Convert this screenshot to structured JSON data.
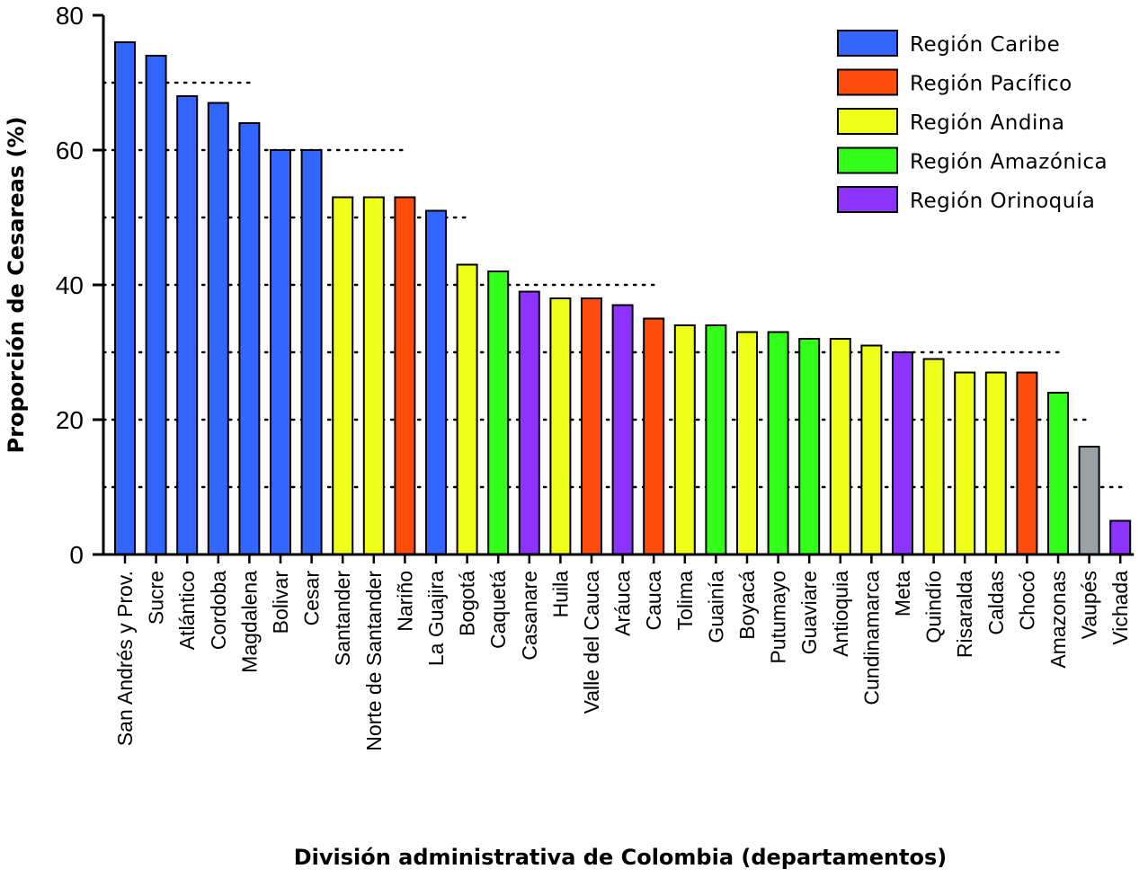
{
  "chart_data": {
    "type": "bar",
    "title": "",
    "xlabel": "División administrativa de Colombia  (departamentos)",
    "ylabel": "Proporción de Cesareas (%)",
    "ylim": [
      0,
      80
    ],
    "yticks": [
      0,
      20,
      40,
      60,
      80
    ],
    "grid": "dotted horizontal reference lines",
    "legend_position": "top-right",
    "legend": [
      {
        "label": "Región Caribe",
        "color": "#3366ff"
      },
      {
        "label": "Región Pacífico",
        "color": "#ff4d0d"
      },
      {
        "label": "Región Andina",
        "color": "#eeff1a"
      },
      {
        "label": "Región Amazónica",
        "color": "#33ff1a"
      },
      {
        "label": "Región Orinoquía",
        "color": "#8c33ff"
      }
    ],
    "categories": [
      "San Andrés y Prov.",
      "Sucre",
      "Atlántico",
      "Cordoba",
      "Magdalena",
      "Bolivar",
      "Cesar",
      "Santander",
      "Norte de Santander",
      "Nariño",
      "La Guajira",
      "Bogotá",
      "Caquetá",
      "Casanare",
      "Huila",
      "Valle del Cauca",
      "Aráuca",
      "Cauca",
      "Tolima",
      "Guainía",
      "Boyacá",
      "Putumayo",
      "Guaviare",
      "Antioquia",
      "Cundinamarca",
      "Meta",
      "Quindío",
      "Risaralda",
      "Caldas",
      "Chocó",
      "Amazonas",
      "Vaupés",
      "Vichada"
    ],
    "values": [
      76,
      74,
      68,
      67,
      64,
      60,
      60,
      53,
      53,
      53,
      51,
      43,
      42,
      39,
      38,
      38,
      37,
      35,
      34,
      34,
      33,
      33,
      32,
      32,
      31,
      30,
      29,
      27,
      27,
      27,
      24,
      16,
      5
    ],
    "bar_colors": [
      "#3366ff",
      "#3366ff",
      "#3366ff",
      "#3366ff",
      "#3366ff",
      "#3366ff",
      "#3366ff",
      "#eeff1a",
      "#eeff1a",
      "#ff4d0d",
      "#3366ff",
      "#eeff1a",
      "#33ff1a",
      "#8c33ff",
      "#eeff1a",
      "#ff4d0d",
      "#8c33ff",
      "#ff4d0d",
      "#eeff1a",
      "#33ff1a",
      "#eeff1a",
      "#33ff1a",
      "#33ff1a",
      "#eeff1a",
      "#eeff1a",
      "#8c33ff",
      "#eeff1a",
      "#eeff1a",
      "#eeff1a",
      "#ff4d0d",
      "#33ff1a",
      "#99a3a6",
      "#8c33ff"
    ],
    "reference_lines": [
      {
        "y": 70,
        "from_category": "San Andrés y Prov.",
        "to_category": "Magdalena"
      },
      {
        "y": 60,
        "from_category": "San Andrés y Prov.",
        "to_category": "Nariño"
      },
      {
        "y": 50,
        "from_category": "San Andrés y Prov.",
        "to_category": "Bogotá"
      },
      {
        "y": 40,
        "from_category": "San Andrés y Prov.",
        "to_category": "Cauca"
      },
      {
        "y": 30,
        "from_category": "San Andrés y Prov.",
        "to_category": "Amazonas"
      },
      {
        "y": 20,
        "from_category": "San Andrés y Prov.",
        "to_category": "Vaupés"
      },
      {
        "y": 10,
        "from_category": "San Andrés y Prov.",
        "to_category": "Vichada"
      }
    ]
  }
}
